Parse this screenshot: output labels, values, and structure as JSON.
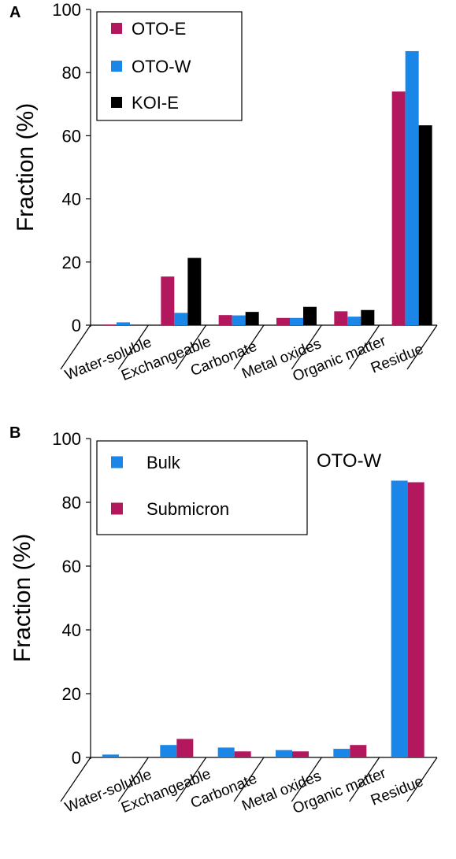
{
  "chart_data": [
    {
      "panel": "A",
      "type": "bar",
      "ylabel": "Fraction (%)",
      "ylim": [
        0,
        100
      ],
      "yticks": [
        0,
        20,
        40,
        60,
        80,
        100
      ],
      "categories": [
        "Water-soluble",
        "Exchangeable",
        "Carbonate",
        "Metal oxides",
        "Organic matter",
        "Residue"
      ],
      "legend_position": "top-left",
      "series": [
        {
          "name": "OTO-E",
          "color": "#b3175e",
          "values": [
            0.2,
            15.4,
            3.2,
            2.3,
            4.4,
            74.0
          ]
        },
        {
          "name": "OTO-W",
          "color": "#1a86e8",
          "values": [
            0.9,
            3.9,
            3.1,
            2.3,
            2.7,
            86.8
          ]
        },
        {
          "name": "KOI-E",
          "color": "#000000",
          "values": [
            0.0,
            21.3,
            4.2,
            5.8,
            4.8,
            63.3
          ]
        }
      ]
    },
    {
      "panel": "B",
      "type": "bar",
      "ylabel": "Fraction (%)",
      "ylim": [
        0,
        100
      ],
      "yticks": [
        0,
        20,
        40,
        60,
        80,
        100
      ],
      "annotation": "OTO-W",
      "categories": [
        "Water-soluble",
        "Exchangeable",
        "Carbonate",
        "Metal oxides",
        "Organic matter",
        "Residue"
      ],
      "legend_position": "top-left",
      "series": [
        {
          "name": "Bulk",
          "color": "#1a86e8",
          "values": [
            0.9,
            3.9,
            3.1,
            2.3,
            2.7,
            86.8
          ]
        },
        {
          "name": "Submicron",
          "color": "#b3175e",
          "values": [
            0.2,
            5.8,
            1.9,
            1.9,
            3.9,
            86.3
          ]
        }
      ]
    }
  ]
}
